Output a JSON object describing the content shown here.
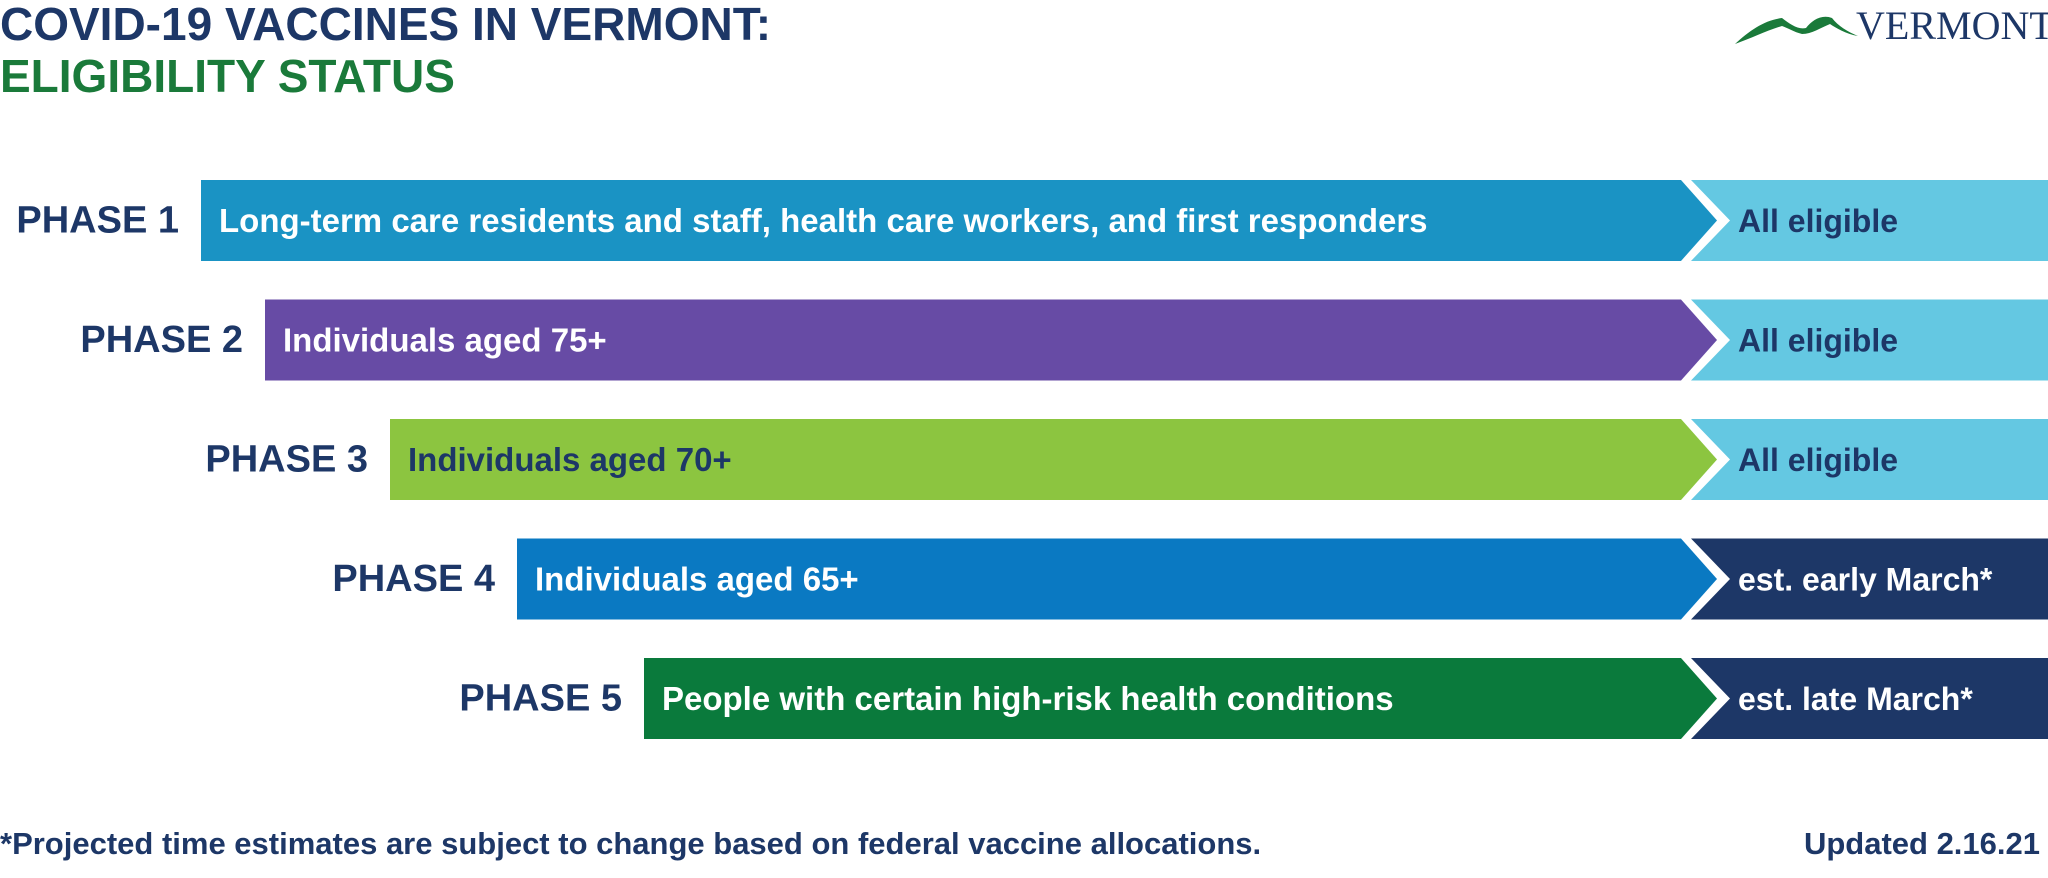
{
  "header": {
    "title": "COVID-19 VACCINES IN VERMONT:",
    "subtitle": "ELIGIBILITY STATUS"
  },
  "logo": {
    "text": "VERMONT"
  },
  "phases": [
    {
      "label": "PHASE 1",
      "description": "Long-term care residents and staff, health care workers, and first responders",
      "status": "All eligible"
    },
    {
      "label": "PHASE 2",
      "description": "Individuals aged 75+",
      "status": "All eligible"
    },
    {
      "label": "PHASE 3",
      "description": "Individuals aged 70+",
      "status": "All eligible"
    },
    {
      "label": "PHASE 4",
      "description": "Individuals aged 65+",
      "status": "est. early March*"
    },
    {
      "label": "PHASE 5",
      "description": "People with certain high-risk health conditions",
      "status": "est. late March*"
    }
  ],
  "footer": {
    "note": "*Projected time estimates are subject to change based on federal vaccine allocations.",
    "updated": "Updated 2.16.21"
  }
}
